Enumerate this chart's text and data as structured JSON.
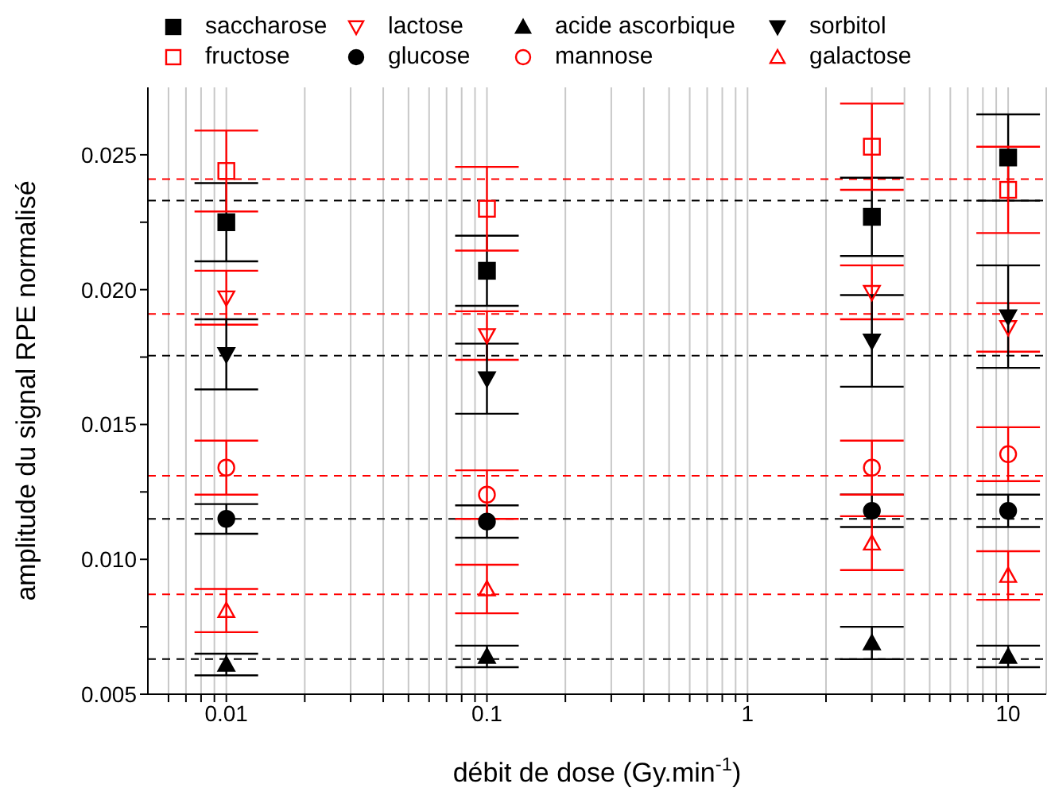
{
  "chart_data": {
    "type": "scatter",
    "xlabel": "débit de dose (Gy.min$^{-1}$)",
    "ylabel": "amplitude du signal RPE normalisé",
    "log": "x",
    "grid": "x",
    "legend": "top",
    "x": [
      0.01,
      0.1,
      3,
      10
    ],
    "xlim": [
      0.005,
      14
    ],
    "xticks": [
      {
        "value": 0.006,
        "label": null
      },
      {
        "value": 0.007,
        "label": null
      },
      {
        "value": 0.008,
        "label": null
      },
      {
        "value": 0.009,
        "label": null
      },
      0.01,
      {
        "value": 0.02,
        "label": null
      },
      {
        "value": 0.03,
        "label": null
      },
      {
        "value": 0.04,
        "label": null
      },
      {
        "value": 0.05,
        "label": null
      },
      {
        "value": 0.06,
        "label": null
      },
      {
        "value": 0.07,
        "label": null
      },
      {
        "value": 0.08,
        "label": null
      },
      {
        "value": 0.09,
        "label": null
      },
      0.1,
      {
        "value": 0.2,
        "label": null
      },
      {
        "value": 0.3,
        "label": null
      },
      {
        "value": 0.4,
        "label": null
      },
      {
        "value": 0.5,
        "label": null
      },
      {
        "value": 0.6,
        "label": null
      },
      {
        "value": 0.7,
        "label": null
      },
      {
        "value": 0.8,
        "label": null
      },
      {
        "value": 0.9,
        "label": null
      },
      1,
      {
        "value": 2,
        "label": null
      },
      {
        "value": 3,
        "label": null
      },
      {
        "value": 4,
        "label": null
      },
      {
        "value": 5,
        "label": null
      },
      {
        "value": 6,
        "label": null
      },
      {
        "value": 7,
        "label": null
      },
      {
        "value": 8,
        "label": null
      },
      {
        "value": 9,
        "label": null
      },
      10
    ],
    "ylim": [
      0.005,
      0.0275
    ],
    "yticks": [
      {
        "value": 0.005,
        "label": "0.005"
      },
      {
        "value": 0.0075,
        "label": null
      },
      {
        "value": 0.01,
        "label": "0.010"
      },
      {
        "value": 0.0125,
        "label": null
      },
      {
        "value": 0.015,
        "label": "0.015"
      },
      {
        "value": 0.0175,
        "label": null
      },
      {
        "value": 0.02,
        "label": "0.020"
      },
      {
        "value": 0.0225,
        "label": null
      },
      {
        "value": 0.025,
        "label": "0.025"
      }
    ],
    "series": [
      {
        "name": "saccharose",
        "color": "#000000",
        "marker": "square",
        "values": [
          0.0225,
          0.0207,
          0.0227,
          0.0249
        ],
        "errors": [
          0.00145,
          0.0013,
          0.00145,
          0.0016
        ]
      },
      {
        "name": "lactose",
        "color": "#ff0000",
        "marker": "triangle-down-open",
        "values": [
          0.0197,
          0.0183,
          0.0199,
          0.0186
        ],
        "errors": [
          0.001,
          0.0009,
          0.001,
          0.0009
        ]
      },
      {
        "name": "acide ascorbique",
        "color": "#000000",
        "marker": "triangle",
        "values": [
          0.0061,
          0.0064,
          0.0069,
          0.0064
        ],
        "errors": [
          0.0004,
          0.0004,
          0.0006,
          0.0004
        ]
      },
      {
        "name": "sorbitol",
        "color": "#000000",
        "marker": "triangle-down",
        "values": [
          0.0176,
          0.0167,
          0.0181,
          0.019
        ],
        "errors": [
          0.0013,
          0.0013,
          0.0017,
          0.0019
        ]
      },
      {
        "name": "fructose",
        "color": "#ff0000",
        "marker": "square-open",
        "values": [
          0.0244,
          0.023,
          0.0253,
          0.0237
        ],
        "errors": [
          0.0015,
          0.00155,
          0.0016,
          0.0016
        ]
      },
      {
        "name": "glucose",
        "color": "#000000",
        "marker": "circle",
        "values": [
          0.0115,
          0.0114,
          0.0118,
          0.0118
        ],
        "errors": [
          0.00055,
          0.0006,
          0.0006,
          0.0006
        ]
      },
      {
        "name": "mannose",
        "color": "#ff0000",
        "marker": "circle-open",
        "values": [
          0.0134,
          0.0124,
          0.0134,
          0.0139
        ],
        "errors": [
          0.001,
          0.0009,
          0.001,
          0.001
        ]
      },
      {
        "name": "galactose",
        "color": "#ff0000",
        "marker": "triangle-open",
        "values": [
          0.0081,
          0.0089,
          0.0106,
          0.0094
        ],
        "errors": [
          0.0008,
          0.0009,
          0.001,
          0.0009
        ]
      }
    ],
    "ref_lines": [
      {
        "axis": "y",
        "value": 0.0241,
        "color": "#ff0000",
        "line_style": "dashed"
      },
      {
        "axis": "y",
        "value": 0.0233,
        "color": "#000000",
        "line_style": "dashed"
      },
      {
        "axis": "y",
        "value": 0.0191,
        "color": "#ff0000",
        "line_style": "dashed"
      },
      {
        "axis": "y",
        "value": 0.01755,
        "color": "#000000",
        "line_style": "dashed"
      },
      {
        "axis": "y",
        "value": 0.0131,
        "color": "#ff0000",
        "line_style": "dashed"
      },
      {
        "axis": "y",
        "value": 0.0115,
        "color": "#000000",
        "line_style": "dashed"
      },
      {
        "axis": "y",
        "value": 0.0087,
        "color": "#ff0000",
        "line_style": "dashed"
      },
      {
        "axis": "y",
        "value": 0.0063,
        "color": "#000000",
        "line_style": "dashed"
      }
    ]
  }
}
